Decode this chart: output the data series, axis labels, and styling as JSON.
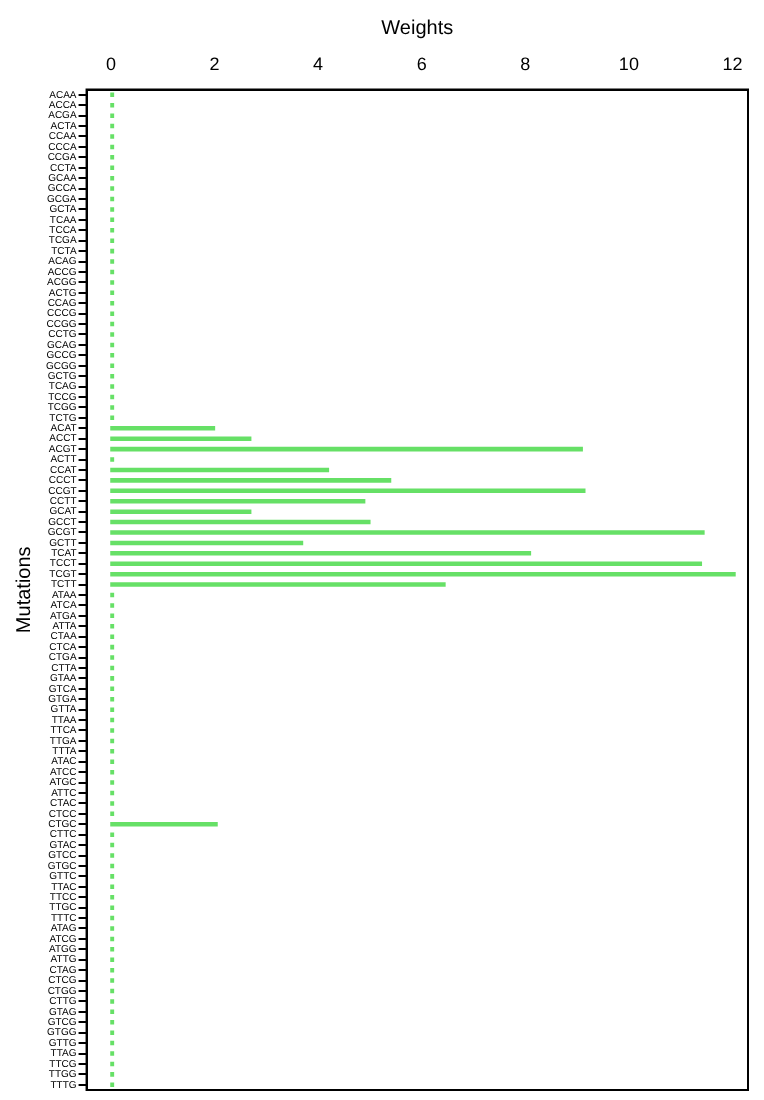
{
  "chart_data": {
    "type": "bar",
    "orientation": "horizontal",
    "xlabel": "Weights",
    "ylabel": "Mutations",
    "categories": [
      "ACAA",
      "ACCA",
      "ACGA",
      "ACTA",
      "CCAA",
      "CCCA",
      "CCGA",
      "CCTA",
      "GCAA",
      "GCCA",
      "GCGA",
      "GCTA",
      "TCAA",
      "TCCA",
      "TCGA",
      "TCTA",
      "ACAG",
      "ACCG",
      "ACGG",
      "ACTG",
      "CCAG",
      "CCCG",
      "CCGG",
      "CCTG",
      "GCAG",
      "GCCG",
      "GCGG",
      "GCTG",
      "TCAG",
      "TCCG",
      "TCGG",
      "TCTG",
      "ACAT",
      "ACCT",
      "ACGT",
      "ACTT",
      "CCAT",
      "CCCT",
      "CCGT",
      "CCTT",
      "GCAT",
      "GCCT",
      "GCGT",
      "GCTT",
      "TCAT",
      "TCCT",
      "TCGT",
      "TCTT",
      "ATAA",
      "ATCA",
      "ATGA",
      "ATTA",
      "CTAA",
      "CTCA",
      "CTGA",
      "CTTA",
      "GTAA",
      "GTCA",
      "GTGA",
      "GTTA",
      "TTAA",
      "TTCA",
      "TTGA",
      "TTTA",
      "ATAC",
      "ATCC",
      "ATGC",
      "ATTC",
      "CTAC",
      "CTCC",
      "CTGC",
      "CTTC",
      "GTAC",
      "GTCC",
      "GTGC",
      "GTTC",
      "TTAC",
      "TTCC",
      "TTGC",
      "TTTC",
      "ATAG",
      "ATCG",
      "ATGG",
      "ATTG",
      "CTAG",
      "CTCG",
      "CTGG",
      "CTTG",
      "GTAG",
      "GTCG",
      "GTGG",
      "GTTG",
      "TTAG",
      "TTCG",
      "TTGG",
      "TTTG"
    ],
    "values": [
      0.05,
      0.05,
      0.05,
      0.05,
      0.05,
      0.05,
      0.05,
      0.05,
      0.05,
      0.05,
      0.05,
      0.05,
      0.05,
      0.05,
      0.05,
      0.05,
      0.05,
      0.05,
      0.05,
      0.05,
      0.05,
      0.05,
      0.05,
      0.05,
      0.05,
      0.05,
      0.05,
      0.05,
      0.05,
      0.05,
      0.05,
      0.05,
      2.0,
      2.7,
      9.1,
      0.05,
      4.2,
      5.4,
      9.15,
      4.9,
      2.7,
      5.0,
      11.45,
      3.7,
      8.1,
      11.4,
      12.05,
      6.45,
      0.05,
      0.05,
      0.05,
      0.05,
      0.05,
      0.05,
      0.05,
      0.05,
      0.05,
      0.05,
      0.05,
      0.05,
      0.05,
      0.05,
      0.05,
      0.05,
      0.05,
      0.05,
      0.05,
      0.05,
      0.05,
      0.05,
      2.05,
      0.05,
      0.05,
      0.05,
      0.05,
      0.05,
      0.05,
      0.05,
      0.05,
      0.05,
      0.05,
      0.05,
      0.05,
      0.05,
      0.05,
      0.05,
      0.05,
      0.05,
      0.05,
      0.05,
      0.05,
      0.05,
      0.05,
      0.05,
      0.05,
      0.05
    ],
    "color": "#66e066",
    "xlim": [
      -0.47,
      12.3
    ],
    "xticks": [
      0,
      2,
      4,
      6,
      8,
      10,
      12
    ],
    "grid": false,
    "legend": false
  }
}
